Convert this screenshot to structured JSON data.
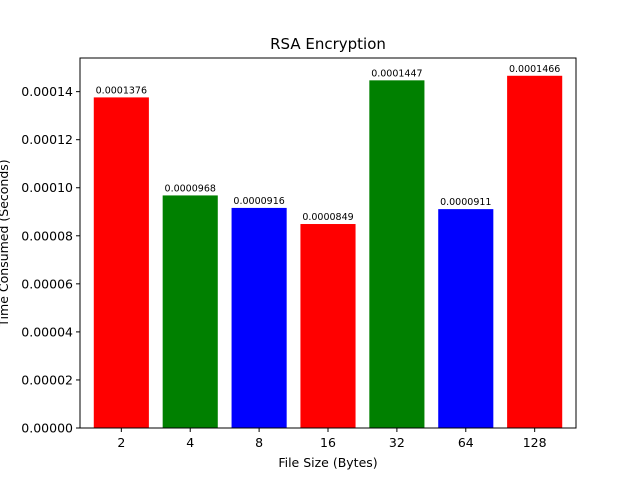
{
  "chart_data": {
    "type": "bar",
    "title": "RSA Encryption",
    "xlabel": "File Size (Bytes)",
    "ylabel": "Time Consumed (Seconds)",
    "categories": [
      "2",
      "4",
      "8",
      "16",
      "32",
      "64",
      "128"
    ],
    "values": [
      0.0001376,
      9.68e-05,
      9.16e-05,
      8.49e-05,
      0.0001447,
      9.11e-05,
      0.0001466
    ],
    "data_labels": [
      "0.0001376",
      "0.0000968",
      "0.0000916",
      "0.0000849",
      "0.0001447",
      "0.0000911",
      "0.0001466"
    ],
    "bar_colors": [
      "#ff0000",
      "#008000",
      "#0000ff",
      "#ff0000",
      "#008000",
      "#0000ff",
      "#ff0000"
    ],
    "ylim": [
      0,
      0.000154
    ],
    "yticks": [
      0,
      2e-05,
      4e-05,
      6e-05,
      8e-05,
      0.0001,
      0.00012,
      0.00014
    ],
    "ytick_labels": [
      "0.00000",
      "0.00002",
      "0.00004",
      "0.00006",
      "0.00008",
      "0.00010",
      "0.00012",
      "0.00014"
    ],
    "grid": false,
    "legend": "none"
  }
}
